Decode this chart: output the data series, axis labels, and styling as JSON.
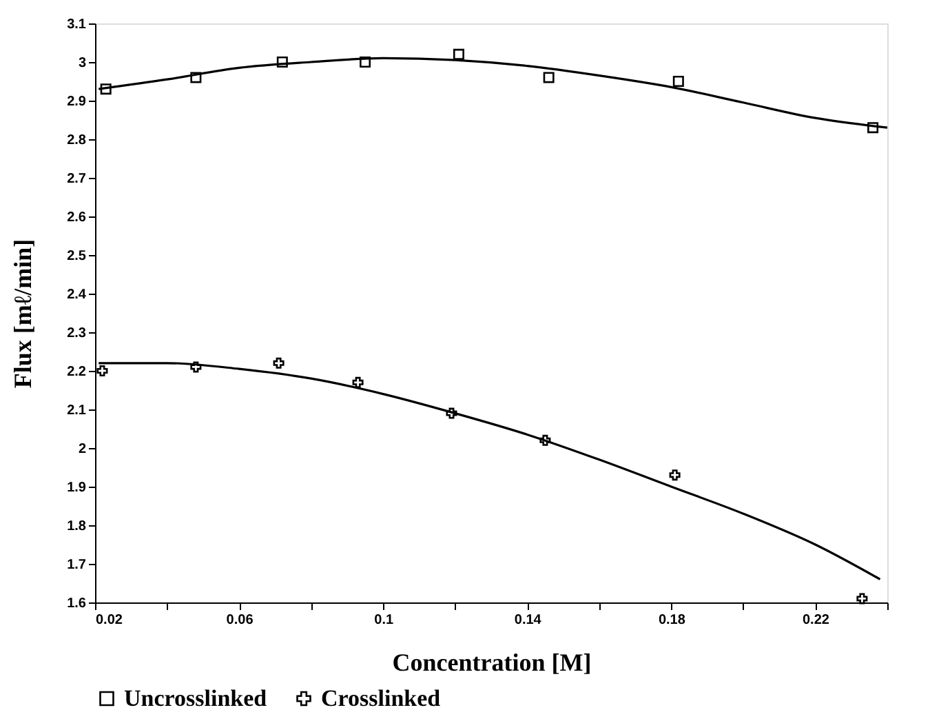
{
  "chart_data": {
    "type": "scatter",
    "xlabel": "Concentration [M]",
    "ylabel": "Flux [mℓ/min]",
    "xlim": [
      0.02,
      0.24
    ],
    "ylim": [
      1.6,
      3.1
    ],
    "xticks": [
      0.02,
      {
        "value": 0.04,
        "label": null
      },
      0.06,
      {
        "value": 0.08,
        "label": null
      },
      0.1,
      {
        "value": 0.12,
        "label": null
      },
      0.14,
      {
        "value": 0.16,
        "label": null
      },
      0.18,
      {
        "value": 0.2,
        "label": null
      },
      0.22,
      {
        "value": 0.24,
        "label": null
      }
    ],
    "yticks": [
      1.6,
      1.7,
      1.8,
      1.9,
      2,
      2.1,
      2.2,
      2.3,
      2.4,
      2.5,
      2.6,
      2.7,
      2.8,
      2.9,
      3,
      3.1
    ],
    "grid": false,
    "legend": "bottom",
    "series": [
      {
        "name": "Uncrosslinked",
        "color": "#000000",
        "marker": "square",
        "x": [
          0.023,
          0.048,
          0.072,
          0.095,
          0.121,
          0.146,
          0.182,
          0.236
        ],
        "values": [
          2.93,
          2.96,
          3.0,
          3.0,
          3.02,
          2.96,
          2.95,
          2.83
        ]
      },
      {
        "name": "Crosslinked",
        "color": "#000000",
        "marker": "cross",
        "x": [
          0.022,
          0.048,
          0.071,
          0.093,
          0.119,
          0.145,
          0.181,
          0.233
        ],
        "values": [
          2.2,
          2.21,
          2.22,
          2.17,
          2.09,
          2.02,
          1.93,
          1.61
        ]
      },
      {
        "type": "line",
        "color": "#000000",
        "marker": "none",
        "x": [
          0.021,
          0.04,
          0.06,
          0.08,
          0.1,
          0.12,
          0.14,
          0.16,
          0.18,
          0.2,
          0.22,
          0.24
        ],
        "values": [
          2.93,
          2.955,
          2.985,
          3.0,
          3.01,
          3.005,
          2.99,
          2.965,
          2.935,
          2.895,
          2.855,
          2.83
        ]
      },
      {
        "type": "line",
        "color": "#000000",
        "marker": "none",
        "x": [
          0.021,
          0.04,
          0.06,
          0.08,
          0.1,
          0.12,
          0.14,
          0.16,
          0.18,
          0.2,
          0.22,
          0.238
        ],
        "values": [
          2.22,
          2.22,
          2.205,
          2.18,
          2.14,
          2.09,
          2.035,
          1.97,
          1.9,
          1.83,
          1.75,
          1.66
        ]
      }
    ]
  }
}
